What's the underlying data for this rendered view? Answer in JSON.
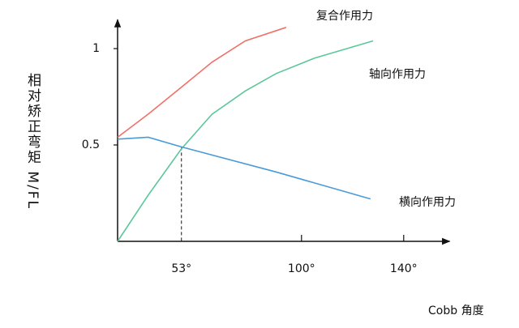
{
  "chart_data": {
    "type": "line",
    "y_label": "相对矫正弯矩 M/FL",
    "x_label": "Cobb 角度",
    "xlim": [
      28,
      158
    ],
    "ylim": [
      0,
      1.15
    ],
    "xticks": [
      {
        "value": 53,
        "label": "53°"
      },
      {
        "value": 100,
        "label": "100°"
      },
      {
        "value": 140,
        "label": "140°"
      }
    ],
    "yticks": [
      0.5,
      1
    ],
    "series": [
      {
        "name": "复合作用力",
        "color": "#f0706a",
        "x": [
          28,
          40,
          53,
          65,
          78,
          94
        ],
        "values": [
          0.54,
          0.66,
          0.8,
          0.93,
          1.04,
          1.11
        ]
      },
      {
        "name": "轴向作用力",
        "color": "#5cc79a",
        "x": [
          28,
          40,
          53,
          65,
          78,
          90,
          105,
          128
        ],
        "values": [
          0,
          0.24,
          0.48,
          0.66,
          0.78,
          0.87,
          0.95,
          1.04
        ]
      },
      {
        "name": "横向作用力",
        "color": "#4a9ad8",
        "x": [
          28,
          40,
          53,
          90,
          127
        ],
        "values": [
          0.53,
          0.54,
          0.49,
          0.36,
          0.22
        ]
      }
    ]
  }
}
